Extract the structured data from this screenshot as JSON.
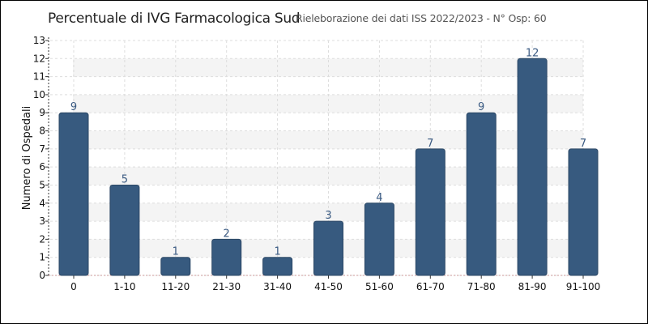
{
  "header": {
    "title": "Percentuale di IVG Farmacologica Sud",
    "subtitle": "Rieleborazione dei dati ISS 2022/2023 - N° Osp: 60"
  },
  "colors": {
    "bar": "#375a7f",
    "bar_label": "#3a5a82",
    "band": "#f4f4f4",
    "grid": "#dddddd"
  },
  "chart_data": {
    "type": "bar",
    "title": "Percentuale di IVG Farmacologica Sud",
    "subtitle": "Rieleborazione dei dati ISS 2022/2023 - N° Osp: 60",
    "xlabel": "",
    "ylabel": "Numero di Ospedali",
    "categories": [
      "0",
      "1-10",
      "11-20",
      "21-30",
      "31-40",
      "41-50",
      "51-60",
      "61-70",
      "71-80",
      "81-90",
      "91-100"
    ],
    "values": [
      9,
      5,
      1,
      2,
      1,
      3,
      4,
      7,
      9,
      12,
      7
    ],
    "ylim": [
      0,
      13
    ],
    "yticks": [
      0,
      1,
      2,
      3,
      4,
      5,
      6,
      7,
      8,
      9,
      10,
      11,
      12,
      13
    ],
    "grid": true,
    "data_labels": true
  }
}
